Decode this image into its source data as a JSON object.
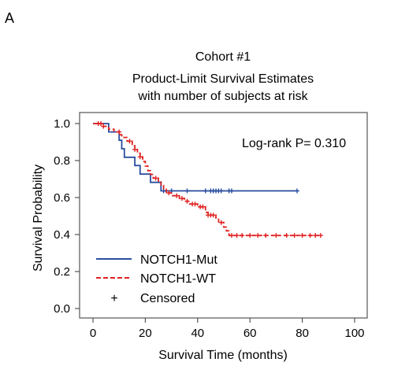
{
  "panel_label": "A",
  "chart_data": {
    "type": "line",
    "title": "Cohort #1",
    "subtitle_lines": [
      "Product-Limit Survival Estimates",
      "with number of subjects at risk"
    ],
    "xlabel": "Survival Time (months)",
    "ylabel": "Survival Probability",
    "xlim": [
      0,
      100
    ],
    "ylim": [
      0,
      1
    ],
    "xticks": [
      "0",
      "20",
      "40",
      "60",
      "80",
      "100"
    ],
    "yticks": [
      "0.0",
      "0.2",
      "0.4",
      "0.6",
      "0.8",
      "1.0"
    ],
    "annotation": "Log-rank P= 0.310",
    "grid": false,
    "legend_placement": "bottom-left",
    "series": [
      {
        "name": "NOTCH1-Mut",
        "color": "#2a4ea0",
        "style": "solid",
        "steps": [
          [
            0,
            1.0
          ],
          [
            6,
            1.0
          ],
          [
            6,
            0.955
          ],
          [
            10,
            0.955
          ],
          [
            10,
            0.91
          ],
          [
            11,
            0.91
          ],
          [
            11,
            0.864
          ],
          [
            12,
            0.864
          ],
          [
            12,
            0.818
          ],
          [
            16,
            0.818
          ],
          [
            16,
            0.773
          ],
          [
            18,
            0.773
          ],
          [
            18,
            0.727
          ],
          [
            22,
            0.727
          ],
          [
            22,
            0.682
          ],
          [
            26,
            0.682
          ],
          [
            26,
            0.636
          ],
          [
            78,
            0.636
          ]
        ],
        "censored": [
          [
            27,
            0.636
          ],
          [
            30,
            0.636
          ],
          [
            36,
            0.636
          ],
          [
            43,
            0.636
          ],
          [
            45,
            0.636
          ],
          [
            46,
            0.636
          ],
          [
            47,
            0.636
          ],
          [
            48,
            0.636
          ],
          [
            49,
            0.636
          ],
          [
            52,
            0.636
          ],
          [
            53,
            0.636
          ],
          [
            78,
            0.636
          ]
        ]
      },
      {
        "name": "NOTCH1-WT",
        "color": "#e02020",
        "style": "dashed",
        "steps": [
          [
            0,
            1.0
          ],
          [
            4,
            1.0
          ],
          [
            4,
            0.985
          ],
          [
            6,
            0.985
          ],
          [
            6,
            0.97
          ],
          [
            8,
            0.97
          ],
          [
            8,
            0.955
          ],
          [
            10,
            0.955
          ],
          [
            10,
            0.94
          ],
          [
            11,
            0.94
          ],
          [
            11,
            0.925
          ],
          [
            13,
            0.925
          ],
          [
            13,
            0.905
          ],
          [
            15,
            0.905
          ],
          [
            15,
            0.88
          ],
          [
            16,
            0.88
          ],
          [
            16,
            0.86
          ],
          [
            17,
            0.86
          ],
          [
            17,
            0.84
          ],
          [
            18,
            0.84
          ],
          [
            18,
            0.82
          ],
          [
            19,
            0.82
          ],
          [
            19,
            0.795
          ],
          [
            20,
            0.795
          ],
          [
            20,
            0.77
          ],
          [
            21,
            0.77
          ],
          [
            21,
            0.745
          ],
          [
            22,
            0.745
          ],
          [
            22,
            0.725
          ],
          [
            23,
            0.725
          ],
          [
            23,
            0.705
          ],
          [
            25,
            0.705
          ],
          [
            25,
            0.685
          ],
          [
            26,
            0.685
          ],
          [
            26,
            0.665
          ],
          [
            27,
            0.665
          ],
          [
            27,
            0.645
          ],
          [
            28,
            0.645
          ],
          [
            28,
            0.625
          ],
          [
            30,
            0.625
          ],
          [
            30,
            0.61
          ],
          [
            33,
            0.61
          ],
          [
            33,
            0.595
          ],
          [
            35,
            0.595
          ],
          [
            35,
            0.58
          ],
          [
            37,
            0.58
          ],
          [
            37,
            0.565
          ],
          [
            40,
            0.565
          ],
          [
            40,
            0.55
          ],
          [
            43,
            0.55
          ],
          [
            43,
            0.52
          ],
          [
            44,
            0.52
          ],
          [
            44,
            0.505
          ],
          [
            47,
            0.505
          ],
          [
            47,
            0.49
          ],
          [
            48,
            0.49
          ],
          [
            48,
            0.465
          ],
          [
            50,
            0.465
          ],
          [
            50,
            0.44
          ],
          [
            51,
            0.44
          ],
          [
            51,
            0.42
          ],
          [
            52,
            0.42
          ],
          [
            52,
            0.395
          ],
          [
            87,
            0.395
          ]
        ],
        "censored": [
          [
            2,
            1.0
          ],
          [
            3,
            1.0
          ],
          [
            4,
            0.985
          ],
          [
            10,
            0.955
          ],
          [
            14,
            0.905
          ],
          [
            16,
            0.86
          ],
          [
            18,
            0.82
          ],
          [
            24,
            0.705
          ],
          [
            29,
            0.625
          ],
          [
            32,
            0.61
          ],
          [
            34,
            0.595
          ],
          [
            36,
            0.58
          ],
          [
            38,
            0.565
          ],
          [
            39,
            0.565
          ],
          [
            41,
            0.55
          ],
          [
            42,
            0.55
          ],
          [
            44,
            0.505
          ],
          [
            45,
            0.505
          ],
          [
            46,
            0.505
          ],
          [
            49,
            0.465
          ],
          [
            53,
            0.395
          ],
          [
            55,
            0.395
          ],
          [
            57,
            0.395
          ],
          [
            60,
            0.395
          ],
          [
            63,
            0.395
          ],
          [
            66,
            0.395
          ],
          [
            70,
            0.395
          ],
          [
            74,
            0.395
          ],
          [
            77,
            0.395
          ],
          [
            80,
            0.395
          ],
          [
            83,
            0.395
          ],
          [
            85,
            0.395
          ],
          [
            87,
            0.395
          ]
        ]
      }
    ],
    "legend_extra": {
      "symbol": "+",
      "label": "Censored"
    }
  }
}
